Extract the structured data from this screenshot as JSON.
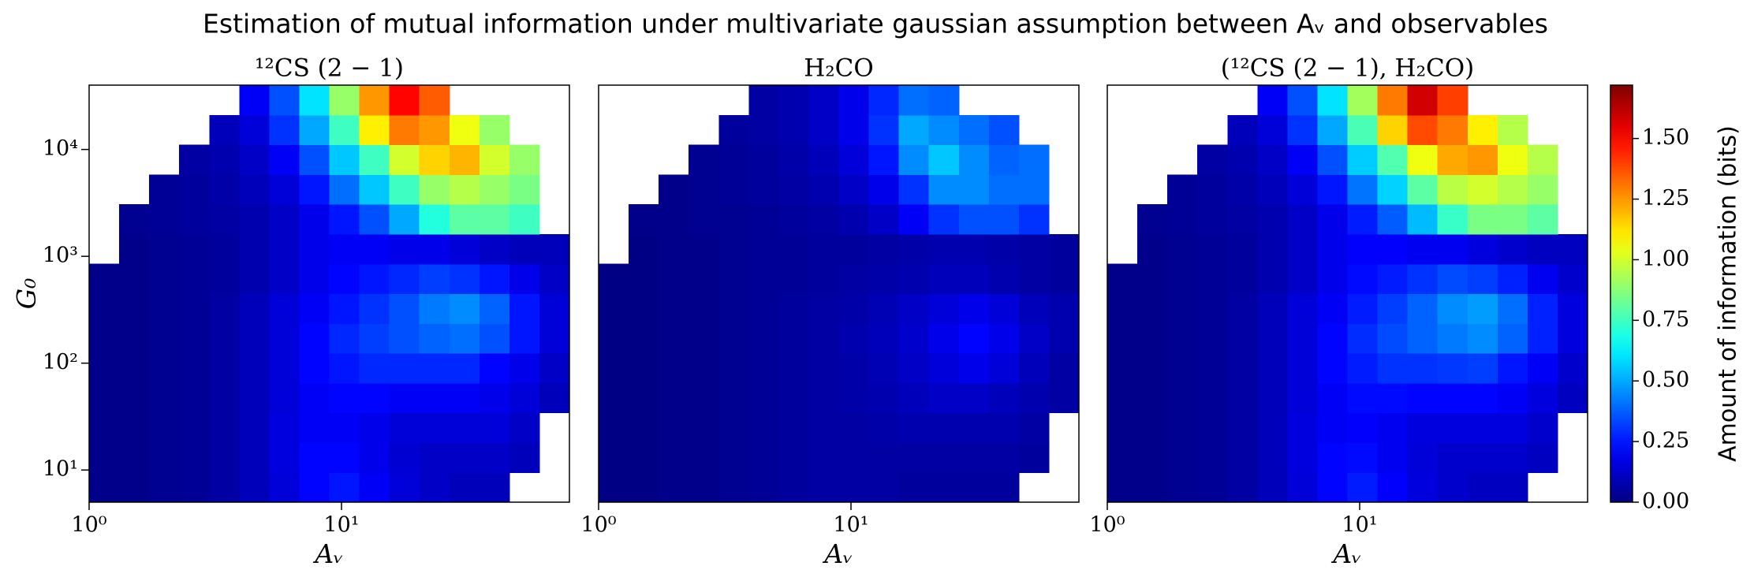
{
  "chart_data": {
    "type": "heatmap",
    "title": "Estimation of mutual information under multivariate gaussian assumption between Aᵥ and observables",
    "colorbar_label": "Amount of information (bits)",
    "colormap": "jet",
    "clim": [
      0,
      1.72
    ],
    "cticks": [
      {
        "value": 0,
        "label": "0.00"
      },
      {
        "value": 0.25,
        "label": "0.25"
      },
      {
        "value": 0.5,
        "label": "0.50"
      },
      {
        "value": 0.75,
        "label": "0.75"
      },
      {
        "value": 1,
        "label": "1.00"
      },
      {
        "value": 1.25,
        "label": "1.25"
      },
      {
        "value": 1.5,
        "label": "1.50"
      }
    ],
    "panels": [
      {
        "title": "¹²CS (2 − 1)",
        "xlabel": "Aᵥ",
        "ylabel": "G₀",
        "xscale": "log",
        "yscale": "log",
        "xlim": [
          1,
          80
        ],
        "ylim": [
          5,
          40000
        ],
        "xticks": [
          {
            "value": 1,
            "label": "10⁰"
          },
          {
            "value": 10,
            "label": "10¹"
          }
        ],
        "yticks": [
          {
            "value": 10,
            "label": "10¹"
          },
          {
            "value": 100,
            "label": "10²"
          },
          {
            "value": 1000,
            "label": "10³"
          },
          {
            "value": 10000,
            "label": "10⁴"
          }
        ],
        "z": [
          [
            0.02,
            0.02,
            0.03,
            0.04,
            0.06,
            0.1,
            0.15,
            0.22,
            0.25,
            0.2,
            0.15,
            0.12,
            0.1,
            0.1,
            null,
            null
          ],
          [
            0.02,
            0.02,
            0.03,
            0.04,
            0.06,
            0.1,
            0.16,
            0.22,
            0.22,
            0.18,
            0.14,
            0.12,
            0.12,
            0.12,
            0.1,
            null
          ],
          [
            0.02,
            0.02,
            0.03,
            0.04,
            0.06,
            0.1,
            0.16,
            0.2,
            0.2,
            0.18,
            0.15,
            0.15,
            0.15,
            0.15,
            0.12,
            null
          ],
          [
            0.02,
            0.02,
            0.03,
            0.04,
            0.06,
            0.1,
            0.15,
            0.2,
            0.22,
            0.22,
            0.2,
            0.2,
            0.2,
            0.18,
            0.15,
            0.1
          ],
          [
            0.02,
            0.02,
            0.03,
            0.04,
            0.06,
            0.1,
            0.15,
            0.22,
            0.25,
            0.28,
            0.28,
            0.28,
            0.28,
            0.22,
            0.18,
            0.12
          ],
          [
            0.02,
            0.02,
            0.03,
            0.04,
            0.06,
            0.1,
            0.15,
            0.22,
            0.28,
            0.32,
            0.35,
            0.38,
            0.4,
            0.35,
            0.25,
            0.15
          ],
          [
            0.02,
            0.02,
            0.03,
            0.04,
            0.06,
            0.1,
            0.15,
            0.2,
            0.25,
            0.3,
            0.35,
            0.42,
            0.45,
            0.38,
            0.25,
            0.15
          ],
          [
            0.02,
            0.02,
            0.03,
            0.04,
            0.05,
            0.08,
            0.12,
            0.18,
            0.22,
            0.25,
            0.28,
            0.32,
            0.3,
            0.25,
            0.18,
            0.12
          ],
          [
            null,
            0.02,
            0.03,
            0.04,
            0.05,
            0.08,
            0.12,
            0.18,
            0.2,
            0.2,
            0.18,
            0.18,
            0.15,
            0.12,
            0.1,
            0.1
          ],
          [
            null,
            0.03,
            0.04,
            0.05,
            0.06,
            0.08,
            0.12,
            0.18,
            0.25,
            0.35,
            0.5,
            0.7,
            0.8,
            0.8,
            0.75,
            null
          ],
          [
            null,
            null,
            0.04,
            0.05,
            0.07,
            0.1,
            0.15,
            0.25,
            0.4,
            0.55,
            0.75,
            0.9,
            0.95,
            0.9,
            0.85,
            null
          ],
          [
            null,
            null,
            null,
            0.06,
            0.08,
            0.12,
            0.2,
            0.35,
            0.55,
            0.75,
            1.0,
            1.15,
            1.2,
            1.0,
            0.9,
            null
          ],
          [
            null,
            null,
            null,
            null,
            0.1,
            0.15,
            0.3,
            0.5,
            0.75,
            1.1,
            1.3,
            1.25,
            1.05,
            0.9,
            null,
            null
          ],
          [
            null,
            null,
            null,
            null,
            null,
            0.2,
            0.35,
            0.6,
            0.9,
            1.25,
            1.5,
            1.35,
            null,
            null,
            null,
            null
          ]
        ]
      },
      {
        "title": "H₂CO",
        "xlabel": "Aᵥ",
        "xscale": "log",
        "yscale": "log",
        "xlim": [
          1,
          80
        ],
        "ylim": [
          5,
          40000
        ],
        "xticks": [
          {
            "value": 1,
            "label": "10⁰"
          },
          {
            "value": 10,
            "label": "10¹"
          }
        ],
        "z": [
          [
            0.01,
            0.01,
            0.02,
            0.02,
            0.03,
            0.04,
            0.05,
            0.06,
            0.06,
            0.06,
            0.05,
            0.05,
            0.05,
            0.05,
            null,
            null
          ],
          [
            0.01,
            0.01,
            0.02,
            0.02,
            0.03,
            0.04,
            0.05,
            0.06,
            0.06,
            0.06,
            0.06,
            0.06,
            0.06,
            0.06,
            0.05,
            null
          ],
          [
            0.01,
            0.01,
            0.02,
            0.02,
            0.03,
            0.04,
            0.05,
            0.06,
            0.06,
            0.07,
            0.08,
            0.08,
            0.08,
            0.08,
            0.06,
            null
          ],
          [
            0.01,
            0.01,
            0.02,
            0.02,
            0.03,
            0.04,
            0.05,
            0.06,
            0.07,
            0.08,
            0.1,
            0.12,
            0.12,
            0.1,
            0.08,
            0.06
          ],
          [
            0.01,
            0.01,
            0.02,
            0.02,
            0.03,
            0.04,
            0.05,
            0.06,
            0.07,
            0.09,
            0.12,
            0.15,
            0.18,
            0.15,
            0.1,
            0.06
          ],
          [
            0.01,
            0.01,
            0.02,
            0.02,
            0.03,
            0.04,
            0.05,
            0.06,
            0.08,
            0.1,
            0.13,
            0.18,
            0.22,
            0.18,
            0.12,
            0.08
          ],
          [
            0.01,
            0.01,
            0.02,
            0.02,
            0.03,
            0.04,
            0.05,
            0.06,
            0.07,
            0.09,
            0.12,
            0.15,
            0.18,
            0.15,
            0.1,
            0.08
          ],
          [
            0.01,
            0.01,
            0.02,
            0.02,
            0.03,
            0.04,
            0.04,
            0.05,
            0.06,
            0.07,
            0.08,
            0.1,
            0.1,
            0.08,
            0.06,
            0.05
          ],
          [
            null,
            0.01,
            0.02,
            0.02,
            0.03,
            0.04,
            0.04,
            0.05,
            0.05,
            0.06,
            0.07,
            0.08,
            0.08,
            0.07,
            0.06,
            0.05
          ],
          [
            null,
            0.02,
            0.02,
            0.03,
            0.03,
            0.04,
            0.05,
            0.06,
            0.08,
            0.12,
            0.2,
            0.3,
            0.35,
            0.35,
            0.3,
            null
          ],
          [
            null,
            null,
            0.02,
            0.03,
            0.04,
            0.05,
            0.06,
            0.08,
            0.12,
            0.18,
            0.3,
            0.45,
            0.45,
            0.4,
            0.4,
            null
          ],
          [
            null,
            null,
            null,
            0.03,
            0.04,
            0.05,
            0.07,
            0.1,
            0.15,
            0.25,
            0.45,
            0.55,
            0.45,
            0.38,
            0.4,
            null
          ],
          [
            null,
            null,
            null,
            null,
            0.05,
            0.06,
            0.08,
            0.12,
            0.18,
            0.3,
            0.5,
            0.45,
            0.4,
            0.35,
            null,
            null
          ],
          [
            null,
            null,
            null,
            null,
            null,
            0.06,
            0.08,
            0.12,
            0.18,
            0.28,
            0.4,
            0.38,
            null,
            null,
            null,
            null
          ]
        ]
      },
      {
        "title": "(¹²CS (2 − 1), H₂CO)",
        "xlabel": "Aᵥ",
        "xscale": "log",
        "yscale": "log",
        "xlim": [
          1,
          80
        ],
        "ylim": [
          5,
          40000
        ],
        "xticks": [
          {
            "value": 1,
            "label": "10⁰"
          },
          {
            "value": 10,
            "label": "10¹"
          }
        ],
        "z": [
          [
            0.02,
            0.02,
            0.03,
            0.04,
            0.06,
            0.1,
            0.15,
            0.22,
            0.26,
            0.21,
            0.16,
            0.13,
            0.11,
            0.11,
            null,
            null
          ],
          [
            0.02,
            0.02,
            0.03,
            0.04,
            0.06,
            0.1,
            0.16,
            0.22,
            0.23,
            0.19,
            0.15,
            0.13,
            0.13,
            0.13,
            0.11,
            null
          ],
          [
            0.02,
            0.02,
            0.03,
            0.04,
            0.06,
            0.1,
            0.16,
            0.2,
            0.21,
            0.19,
            0.16,
            0.16,
            0.16,
            0.16,
            0.13,
            null
          ],
          [
            0.02,
            0.02,
            0.03,
            0.04,
            0.06,
            0.1,
            0.15,
            0.2,
            0.23,
            0.23,
            0.22,
            0.22,
            0.22,
            0.2,
            0.16,
            0.11
          ],
          [
            0.02,
            0.02,
            0.03,
            0.04,
            0.06,
            0.1,
            0.15,
            0.22,
            0.26,
            0.3,
            0.3,
            0.31,
            0.32,
            0.25,
            0.2,
            0.13
          ],
          [
            0.02,
            0.02,
            0.03,
            0.04,
            0.06,
            0.1,
            0.15,
            0.22,
            0.29,
            0.34,
            0.38,
            0.42,
            0.45,
            0.38,
            0.27,
            0.16
          ],
          [
            0.02,
            0.02,
            0.03,
            0.04,
            0.06,
            0.1,
            0.15,
            0.2,
            0.26,
            0.32,
            0.38,
            0.45,
            0.48,
            0.4,
            0.27,
            0.16
          ],
          [
            0.02,
            0.02,
            0.03,
            0.04,
            0.05,
            0.08,
            0.12,
            0.18,
            0.23,
            0.26,
            0.3,
            0.34,
            0.32,
            0.27,
            0.19,
            0.13
          ],
          [
            null,
            0.02,
            0.03,
            0.04,
            0.05,
            0.08,
            0.12,
            0.18,
            0.21,
            0.21,
            0.19,
            0.19,
            0.16,
            0.13,
            0.11,
            0.11
          ],
          [
            null,
            0.03,
            0.04,
            0.05,
            0.06,
            0.08,
            0.12,
            0.18,
            0.26,
            0.37,
            0.53,
            0.74,
            0.85,
            0.85,
            0.8,
            null
          ],
          [
            null,
            null,
            0.04,
            0.05,
            0.07,
            0.1,
            0.15,
            0.25,
            0.41,
            0.57,
            0.8,
            0.96,
            1.0,
            0.95,
            0.9,
            null
          ],
          [
            null,
            null,
            null,
            0.06,
            0.08,
            0.12,
            0.2,
            0.35,
            0.56,
            0.78,
            1.05,
            1.22,
            1.25,
            1.05,
            0.95,
            null
          ],
          [
            null,
            null,
            null,
            null,
            0.1,
            0.15,
            0.3,
            0.5,
            0.77,
            1.15,
            1.38,
            1.3,
            1.1,
            0.95,
            null,
            null
          ],
          [
            null,
            null,
            null,
            null,
            null,
            0.2,
            0.35,
            0.6,
            0.92,
            1.3,
            1.58,
            1.4,
            null,
            null,
            null,
            null
          ]
        ]
      }
    ]
  }
}
